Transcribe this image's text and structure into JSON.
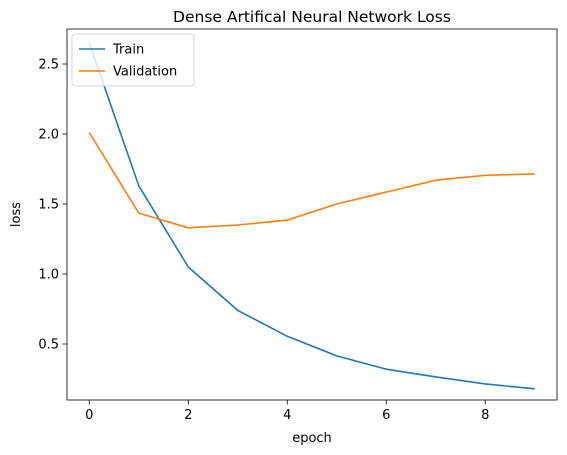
{
  "chart_data": {
    "type": "line",
    "title": "Dense Artifical Neural Network Loss",
    "xlabel": "epoch",
    "ylabel": "loss",
    "xlim": [
      -0.45,
      9.45
    ],
    "ylim": [
      0.1,
      2.75
    ],
    "xticks": [
      0,
      2,
      4,
      6,
      8
    ],
    "yticks": [
      0.5,
      1.0,
      1.5,
      2.0,
      2.5
    ],
    "xtick_labels": [
      "0",
      "2",
      "4",
      "6",
      "8"
    ],
    "ytick_labels": [
      "0.5",
      "1.0",
      "1.5",
      "2.0",
      "2.5"
    ],
    "grid": false,
    "legend_position": "top-left",
    "x": [
      0,
      1,
      2,
      3,
      4,
      5,
      6,
      7,
      8,
      9
    ],
    "series": [
      {
        "name": "Train",
        "color": "#1f77b4",
        "values": [
          2.65,
          1.63,
          1.05,
          0.74,
          0.555,
          0.415,
          0.32,
          0.265,
          0.215,
          0.18
        ]
      },
      {
        "name": "Validation",
        "color": "#ff7f0e",
        "values": [
          2.01,
          1.435,
          1.33,
          1.35,
          1.385,
          1.5,
          1.585,
          1.67,
          1.705,
          1.715
        ]
      }
    ]
  }
}
